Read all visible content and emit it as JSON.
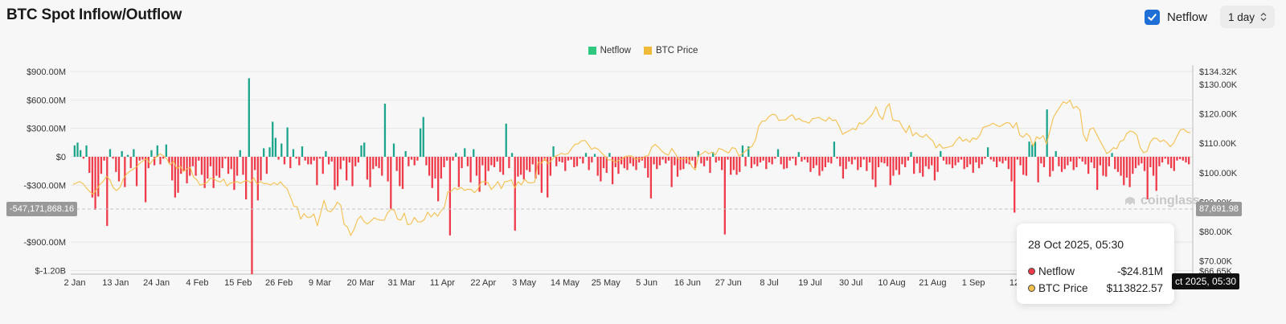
{
  "header": {
    "title": "BTC Spot Inflow/Outflow",
    "netflow_toggle_label": "Netflow",
    "netflow_checked": true,
    "interval": "1 day"
  },
  "colors": {
    "inflow": "#1ba58c",
    "outflow": "#ef3a4a",
    "price": "#f5c04d",
    "netflow_legend": "#2ec97e",
    "price_legend": "#f0b93a"
  },
  "legend": [
    {
      "label": "Netflow",
      "color": "#2ec97e"
    },
    {
      "label": "BTC Price",
      "color": "#f0b93a"
    }
  ],
  "crosshair": {
    "left_value": "-547,171,868.16",
    "right_value": "87,691.98",
    "x_label": "ct 2025, 05:30"
  },
  "watermark": "coinglass",
  "tooltip": {
    "date": "28 Oct 2025, 05:30",
    "rows": [
      {
        "name": "Netflow",
        "value": "-$24.81M",
        "dot": "#ef3a4a"
      },
      {
        "name": "BTC Price",
        "value": "$113822.57",
        "dot": "#f5c04d"
      }
    ]
  },
  "chart_data": {
    "type": "bar",
    "title": "BTC Spot Inflow/Outflow",
    "left_axis_ticks": [
      "$900.00M",
      "$600.00M",
      "$300.00M",
      "$0",
      "-$300.00M",
      "-$900.00M",
      "$-1.20B"
    ],
    "left_axis_values": [
      900,
      600,
      300,
      0,
      -300,
      -900,
      -1200
    ],
    "right_axis_ticks": [
      "$134.32K",
      "$130.00K",
      "$120.00K",
      "$110.00K",
      "$100.00K",
      "$90.00K",
      "$80.00K",
      "$70.00K",
      "$66.65K"
    ],
    "right_axis_values": [
      134.32,
      130,
      120,
      110,
      100,
      90,
      80,
      70,
      66.65
    ],
    "x_ticks": [
      "2 Jan",
      "13 Jan",
      "24 Jan",
      "4 Feb",
      "15 Feb",
      "26 Feb",
      "9 Mar",
      "20 Mar",
      "31 Mar",
      "11 Apr",
      "22 Apr",
      "3 May",
      "14 May",
      "25 May",
      "5 Jun",
      "16 Jun",
      "27 Jun",
      "8 Jul",
      "19 Jul",
      "30 Jul",
      "10 Aug",
      "21 Aug",
      "1 Sep",
      "12"
    ],
    "ylim_netflow_musd": [
      -1200,
      900
    ],
    "ylim_price_kusd": [
      66.65,
      134.32
    ],
    "netflow_musd": [
      120,
      150,
      70,
      -20,
      120,
      -170,
      -430,
      -560,
      -420,
      -180,
      -40,
      -730,
      80,
      -20,
      -160,
      -260,
      60,
      -320,
      20,
      -120,
      80,
      -310,
      -40,
      -30,
      -480,
      -120,
      70,
      -90,
      120,
      -80,
      -20,
      130,
      -70,
      -250,
      -430,
      -380,
      -180,
      -150,
      -280,
      -200,
      -100,
      -200,
      -40,
      -190,
      -330,
      -230,
      -100,
      -330,
      -200,
      -220,
      -120,
      -20,
      -180,
      -130,
      -350,
      -200,
      70,
      -190,
      -450,
      830,
      -1240,
      -140,
      -460,
      -250,
      90,
      -180,
      100,
      370,
      200,
      -30,
      140,
      -80,
      310,
      -120,
      80,
      -20,
      -90,
      110,
      -40,
      -80,
      -80,
      -40,
      -300,
      -20,
      -180,
      60,
      -80,
      -50,
      -350,
      -310,
      -130,
      -40,
      -250,
      -60,
      -310,
      -100,
      -60,
      120,
      150,
      -240,
      -320,
      -130,
      -100,
      -120,
      -200,
      560,
      -260,
      -550,
      140,
      -150,
      -310,
      -340,
      60,
      -100,
      -30,
      -90,
      -40,
      300,
      420,
      -90,
      -200,
      -330,
      -230,
      -470,
      -230,
      -110,
      -40,
      -830,
      -40,
      40,
      -320,
      -120,
      90,
      -100,
      -270,
      80,
      -200,
      -370,
      -90,
      -300,
      -150,
      -90,
      -110,
      -50,
      -160,
      -190,
      350,
      -120,
      40,
      -780,
      -210,
      -190,
      -240,
      -140,
      -160,
      -80,
      -230,
      -190,
      -380,
      -40,
      -430,
      -200,
      110,
      -100,
      -50,
      -60,
      -150,
      -40,
      -30,
      -110,
      -100,
      -20,
      -70,
      40,
      -140,
      -60,
      30,
      -200,
      -260,
      -120,
      -170,
      40,
      -290,
      -110,
      -180,
      -80,
      -120,
      -140,
      -70,
      -100,
      -140,
      -60,
      -40,
      -120,
      -220,
      -440,
      -80,
      -130,
      -90,
      -30,
      -70,
      -40,
      -320,
      -90,
      -210,
      -140,
      -130,
      -70,
      -80,
      -40,
      -120,
      60,
      -70,
      -100,
      -40,
      -170,
      50,
      -60,
      -40,
      -140,
      -820,
      -30,
      -190,
      -140,
      -190,
      -160,
      120,
      -100,
      110,
      -120,
      -80,
      -100,
      -60,
      -40,
      -130,
      -60,
      -80,
      -20,
      80,
      -80,
      -130,
      -120,
      -40,
      -20,
      -90,
      50,
      -50,
      -30,
      -60,
      -160,
      -120,
      -90,
      -200,
      -150,
      -110,
      -60,
      -70,
      160,
      -20,
      -100,
      -230,
      -130,
      -50,
      -80,
      -30,
      -140,
      -110,
      -30,
      -150,
      -60,
      -240,
      -320,
      -110,
      -60,
      -70,
      -100,
      -300,
      -200,
      -140,
      -190,
      -80,
      -110,
      -40,
      50,
      -180,
      -70,
      -170,
      -210,
      -100,
      -130,
      -90,
      -250,
      -160,
      60,
      -40,
      -80,
      -80,
      -120,
      -90,
      -60,
      -30,
      -130,
      -110,
      -80,
      -170,
      -60,
      -120,
      -80,
      -20,
      100,
      -30,
      -50,
      -110,
      -50,
      -70,
      -40,
      -130,
      -260,
      -590,
      -30,
      -90,
      -190,
      -200,
      160,
      130,
      160,
      -270,
      -70,
      -110,
      500,
      -210,
      -150,
      60,
      -100,
      -160,
      -130,
      -90,
      -50,
      -140,
      -110,
      -20,
      -50,
      -80,
      -180,
      -60,
      -120,
      -350,
      -90,
      -200,
      -210,
      -100,
      40,
      -130,
      -160,
      -200,
      -300,
      -220,
      -320,
      -180,
      -120,
      -90,
      -70,
      -150,
      -450,
      -110,
      -200,
      -360,
      -100,
      -60,
      -20,
      -80,
      -120,
      -150,
      -40,
      -25,
      -40,
      -60,
      -80
    ],
    "price_kusd": [
      96,
      96.5,
      97,
      96.2,
      94.8,
      93.5,
      92.7,
      94.2,
      96,
      97.1,
      98.8,
      97.5,
      94.9,
      93.9,
      95,
      97.8,
      99.6,
      100.5,
      101.2,
      102,
      103.3,
      104.1,
      104.8,
      102.9,
      104.6,
      105.4,
      106.4,
      105.7,
      104.7,
      102.6,
      103.9,
      101.3,
      102.2,
      100.4,
      101.3,
      101.8,
      98.5,
      97.5,
      95.7,
      96.2,
      96.6,
      98.1,
      97.9,
      97.2,
      96.8,
      97.8,
      95.5,
      96.5,
      96.7,
      97,
      96.4,
      97,
      97.4,
      96.6,
      98.3,
      96.1,
      97,
      96.3,
      96.3,
      95.8,
      96.6,
      95.9,
      96.9,
      95.5,
      94.5,
      91.6,
      88.6,
      88.4,
      84.2,
      86.1,
      84.8,
      84.9,
      86,
      82,
      86.3,
      90.6,
      87.1,
      86.7,
      88,
      90,
      89,
      82.5,
      81.5,
      78.7,
      80.8,
      84,
      85.3,
      83.3,
      82.6,
      83.6,
      84.7,
      84.1,
      83.9,
      83.9,
      86.4,
      87.5,
      87.3,
      84.2,
      83.9,
      86.3,
      82.3,
      82.6,
      84.8,
      83.3,
      83.3,
      84.1,
      86.6,
      85,
      86.4,
      85.2,
      87.1,
      88.3,
      93.5,
      93.7,
      94.8,
      94.3,
      95,
      94,
      94.4,
      94.3,
      93.2,
      94.4,
      96.8,
      97,
      96.6,
      94.3,
      95.5,
      97,
      94.6,
      96.9,
      97.1,
      97.6,
      94.8,
      96.9,
      95.9,
      97.7,
      96.6,
      96.5,
      96.8,
      103.6,
      103.2,
      104.8,
      102.9,
      104.2,
      105.5,
      106,
      106.6,
      106.2,
      106.5,
      108.2,
      109.6,
      109.8,
      110.8,
      111,
      109.6,
      107.9,
      108.5,
      107.9,
      106.7,
      105.6,
      104.3,
      104.4,
      103.5,
      104.1,
      104.6,
      105.5,
      105.7,
      105.7,
      104.5,
      104.8,
      104.7,
      105.6,
      105.8,
      108.7,
      109.6,
      108.6,
      107.3,
      106.4,
      106,
      108.2,
      106.5,
      104.5,
      104.7,
      104.9,
      104.5,
      102.1,
      100.9,
      105.8,
      106.4,
      107.3,
      106.4,
      107,
      106,
      108.2,
      107.9,
      107.2,
      106.7,
      108.5,
      108.2,
      105.7,
      106.3,
      107.4,
      108.3,
      109,
      111.2,
      115.9,
      117.5,
      117.6,
      119,
      119.8,
      119.6,
      117.7,
      117.9,
      117.9,
      119,
      119.7,
      117.9,
      118.4,
      117.5,
      117.3,
      116.8,
      118.3,
      118.5,
      118.8,
      118,
      117.5,
      118.8,
      117.7,
      117.9,
      115.8,
      113,
      113.7,
      114.2,
      115,
      114.5,
      116.9,
      116.5,
      117.5,
      118.6,
      120,
      122.4,
      119.3,
      118,
      121.9,
      123.4,
      118,
      117.6,
      117.5,
      115.3,
      113.6,
      116,
      112.5,
      113.6,
      112.5,
      112,
      113,
      111.7,
      110.8,
      108.4,
      109.7,
      108.3,
      108.5,
      108.8,
      109.2,
      111,
      112.1,
      110.7,
      111.4,
      110.3,
      111.8,
      111.3,
      112.6,
      115.3,
      115.7,
      116.1,
      116.8,
      116.1,
      115.6,
      116.3,
      117,
      116.8,
      115.2,
      117,
      112.7,
      112,
      113.3,
      112.3,
      109,
      112.2,
      111.5,
      112.6,
      109.7,
      114.1,
      118.6,
      120.6,
      122.3,
      124.1,
      123.5,
      124.6,
      121.9,
      122.5,
      121.2,
      113.1,
      110.6,
      114.8,
      115.2,
      113,
      110.8,
      108.7,
      106.5,
      107.2,
      108.5,
      108.1,
      110.6,
      111,
      113.3,
      114.1,
      113.8,
      112.8,
      108.5,
      106.8,
      107.2,
      110.3,
      111.7,
      111.6,
      110.5,
      111.1,
      110.2,
      108.8,
      110,
      112.4,
      114.5,
      114.8,
      113.8,
      113.6
    ]
  }
}
